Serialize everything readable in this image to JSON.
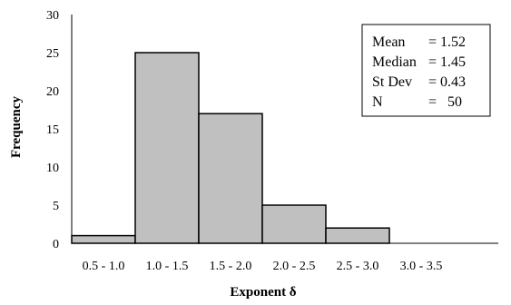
{
  "chart_data": {
    "type": "bar",
    "title": "",
    "xlabel": "Exponent δ",
    "ylabel": "Frequency",
    "categories": [
      "0.5 - 1.0",
      "1.0 - 1.5",
      "1.5 - 2.0",
      "2.0 - 2.5",
      "2.5 - 3.0",
      "3.0 - 3.5"
    ],
    "values": [
      1,
      25,
      17,
      5,
      2,
      0
    ],
    "ylim": [
      0,
      30
    ],
    "yticks": [
      "0",
      "5",
      "10",
      "15",
      "20",
      "25",
      "30"
    ],
    "bar_color": "#c0c0c0",
    "grid": false,
    "legend": "none",
    "stats_box": {
      "placement": "top-right",
      "rows": [
        {
          "label": "Mean",
          "value": "= 1.52"
        },
        {
          "label": "Median",
          "value": "= 1.45"
        },
        {
          "label": "St Dev",
          "value": "= 0.43"
        },
        {
          "label": "N",
          "value": "=   50"
        }
      ]
    }
  }
}
